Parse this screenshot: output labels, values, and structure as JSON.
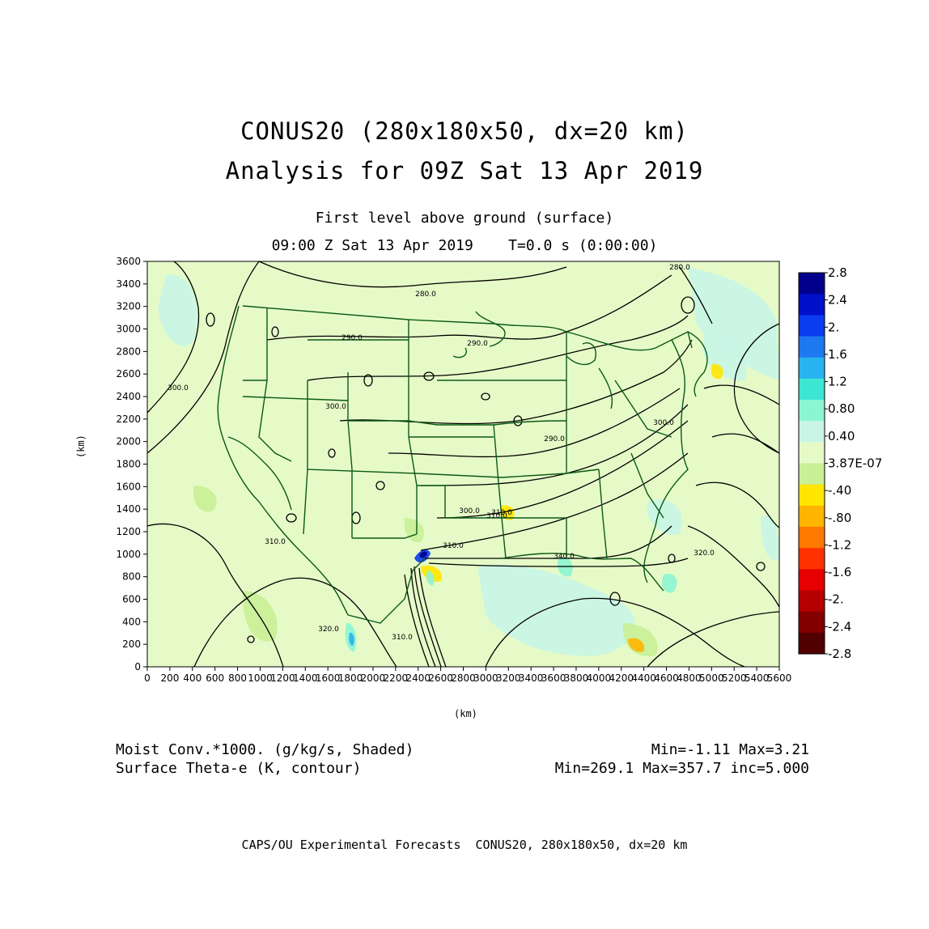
{
  "header": {
    "title_line1": "CONUS20 (280x180x50, dx=20 km)",
    "title_line2": "Analysis for 09Z Sat 13 Apr 2019",
    "level": "First level above ground (surface)",
    "time": "09:00 Z Sat 13 Apr 2019    T=0.0 s (0:00:00)"
  },
  "axes": {
    "x_label": "(km)",
    "y_label": "(km)",
    "x_ticks": [
      "0",
      "200",
      "400",
      "600",
      "800",
      "1000",
      "1200",
      "1400",
      "1600",
      "1800",
      "2000",
      "2200",
      "2400",
      "2600",
      "2800",
      "3000",
      "3200",
      "3400",
      "3600",
      "3800",
      "4000",
      "4200",
      "4400",
      "4600",
      "4800",
      "5000",
      "5200",
      "5400",
      "5600"
    ],
    "y_ticks": [
      "0",
      "200",
      "400",
      "600",
      "800",
      "1000",
      "1200",
      "1400",
      "1600",
      "1800",
      "2000",
      "2200",
      "2400",
      "2600",
      "2800",
      "3000",
      "3200",
      "3400",
      "3600"
    ],
    "x_range_km": [
      0,
      5600
    ],
    "y_range_km": [
      0,
      3600
    ]
  },
  "colorbar": {
    "labels": [
      "2.8",
      "2.4",
      "2.",
      "1.6",
      "1.2",
      "0.80",
      "0.40",
      "3.87E-07",
      "-.40",
      "-.80",
      "-1.2",
      "-1.6",
      "-2.",
      "-2.4",
      "-2.8"
    ],
    "colors": [
      "#00008b",
      "#0010c8",
      "#0a3cf0",
      "#1e78f0",
      "#28b4f0",
      "#3ce6d2",
      "#8cf5d2",
      "#c8f5e6",
      "#e6fac8",
      "#c8f096",
      "#ffe600",
      "#ffb400",
      "#ff7800",
      "#ff3200",
      "#e60000",
      "#b40000",
      "#820000",
      "#500000"
    ]
  },
  "contour_labels": [
    "280.0",
    "280.0",
    "290.0",
    "290.0",
    "290.0",
    "300.0",
    "300.0",
    "300.0",
    "300.0",
    "310.0",
    "310.0",
    "310.0",
    "310.0",
    "320.0",
    "320.0",
    "340.0",
    "310.0"
  ],
  "footer": {
    "field1_name": "Moist Conv.*1000. (g/kg/s, Shaded)",
    "field1_stats": "Min=-1.11 Max=3.21",
    "field2_name": "Surface Theta-e (K, contour)",
    "field2_stats": "Min=269.1 Max=357.7 inc=5.000",
    "credit": "CAPS/OU Experimental Forecasts  CONUS20, 280x180x50, dx=20 km"
  },
  "map_colors": {
    "background_fill": "#e6fac8",
    "boundary_color": "#0a5a14",
    "contour_color": "#000000"
  }
}
